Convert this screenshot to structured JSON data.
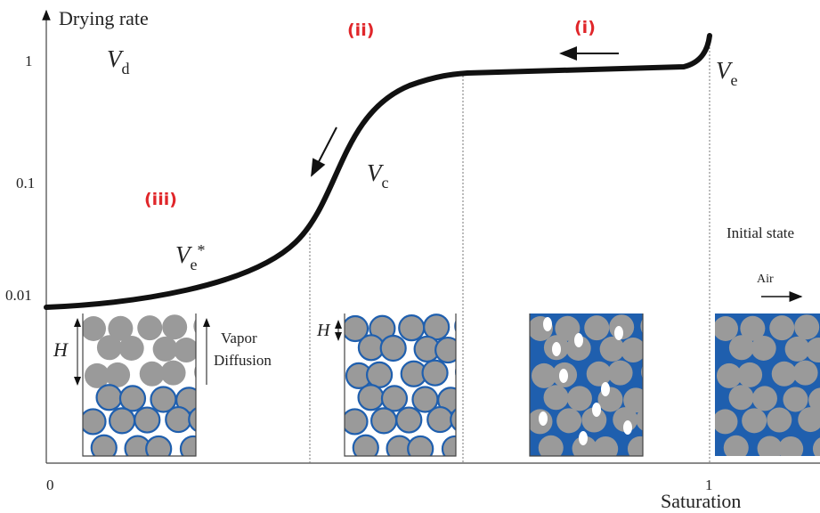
{
  "axes": {
    "y_label": "Drying rate",
    "x_label": "Saturation",
    "y_ticks": [
      "1",
      "0.1",
      "0.01"
    ],
    "x_ticks": [
      "0",
      "1"
    ]
  },
  "annotations": {
    "vd": {
      "symbol": "V",
      "sub": "d"
    },
    "ve": {
      "symbol": "V",
      "sub": "e"
    },
    "vc": {
      "symbol": "V",
      "sub": "c"
    },
    "ve_star": {
      "symbol": "V",
      "sub": "e",
      "sup": "*"
    }
  },
  "regimes": [
    "(i)",
    "(ii)",
    "(iii)"
  ],
  "labels": {
    "h_left": "H",
    "h_mid": "H",
    "vapor": "Vapor",
    "diffusion": "Diffusion",
    "initial_state": "Initial state",
    "air": "Air"
  }
}
